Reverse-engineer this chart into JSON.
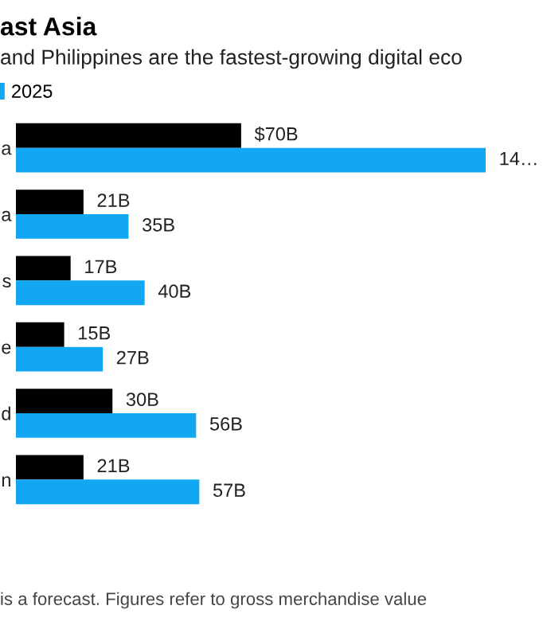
{
  "chart_data": {
    "type": "bar",
    "orientation": "horizontal",
    "title": "ast Asia",
    "subtitle": "and Philippines are the fastest-growing digital eco",
    "categories": [
      "a",
      "a",
      "s",
      "e",
      "d",
      "n"
    ],
    "series": [
      {
        "color": "#000000",
        "values": [
          70,
          21,
          17,
          15,
          30,
          21
        ],
        "value_labels": [
          "$70B",
          "21B",
          "17B",
          "15B",
          "30B",
          "21B"
        ]
      },
      {
        "name": "2025",
        "color": "#12a7f2",
        "values": [
          146,
          35,
          40,
          27,
          56,
          57
        ],
        "value_labels": [
          "14…",
          "35B",
          "40B",
          "27B",
          "56B",
          "57B"
        ]
      }
    ],
    "tick_labels": "y",
    "grid": false,
    "legend": "top left",
    "annotations": [
      "is a forecast. Figures refer to gross merchandise value"
    ]
  }
}
